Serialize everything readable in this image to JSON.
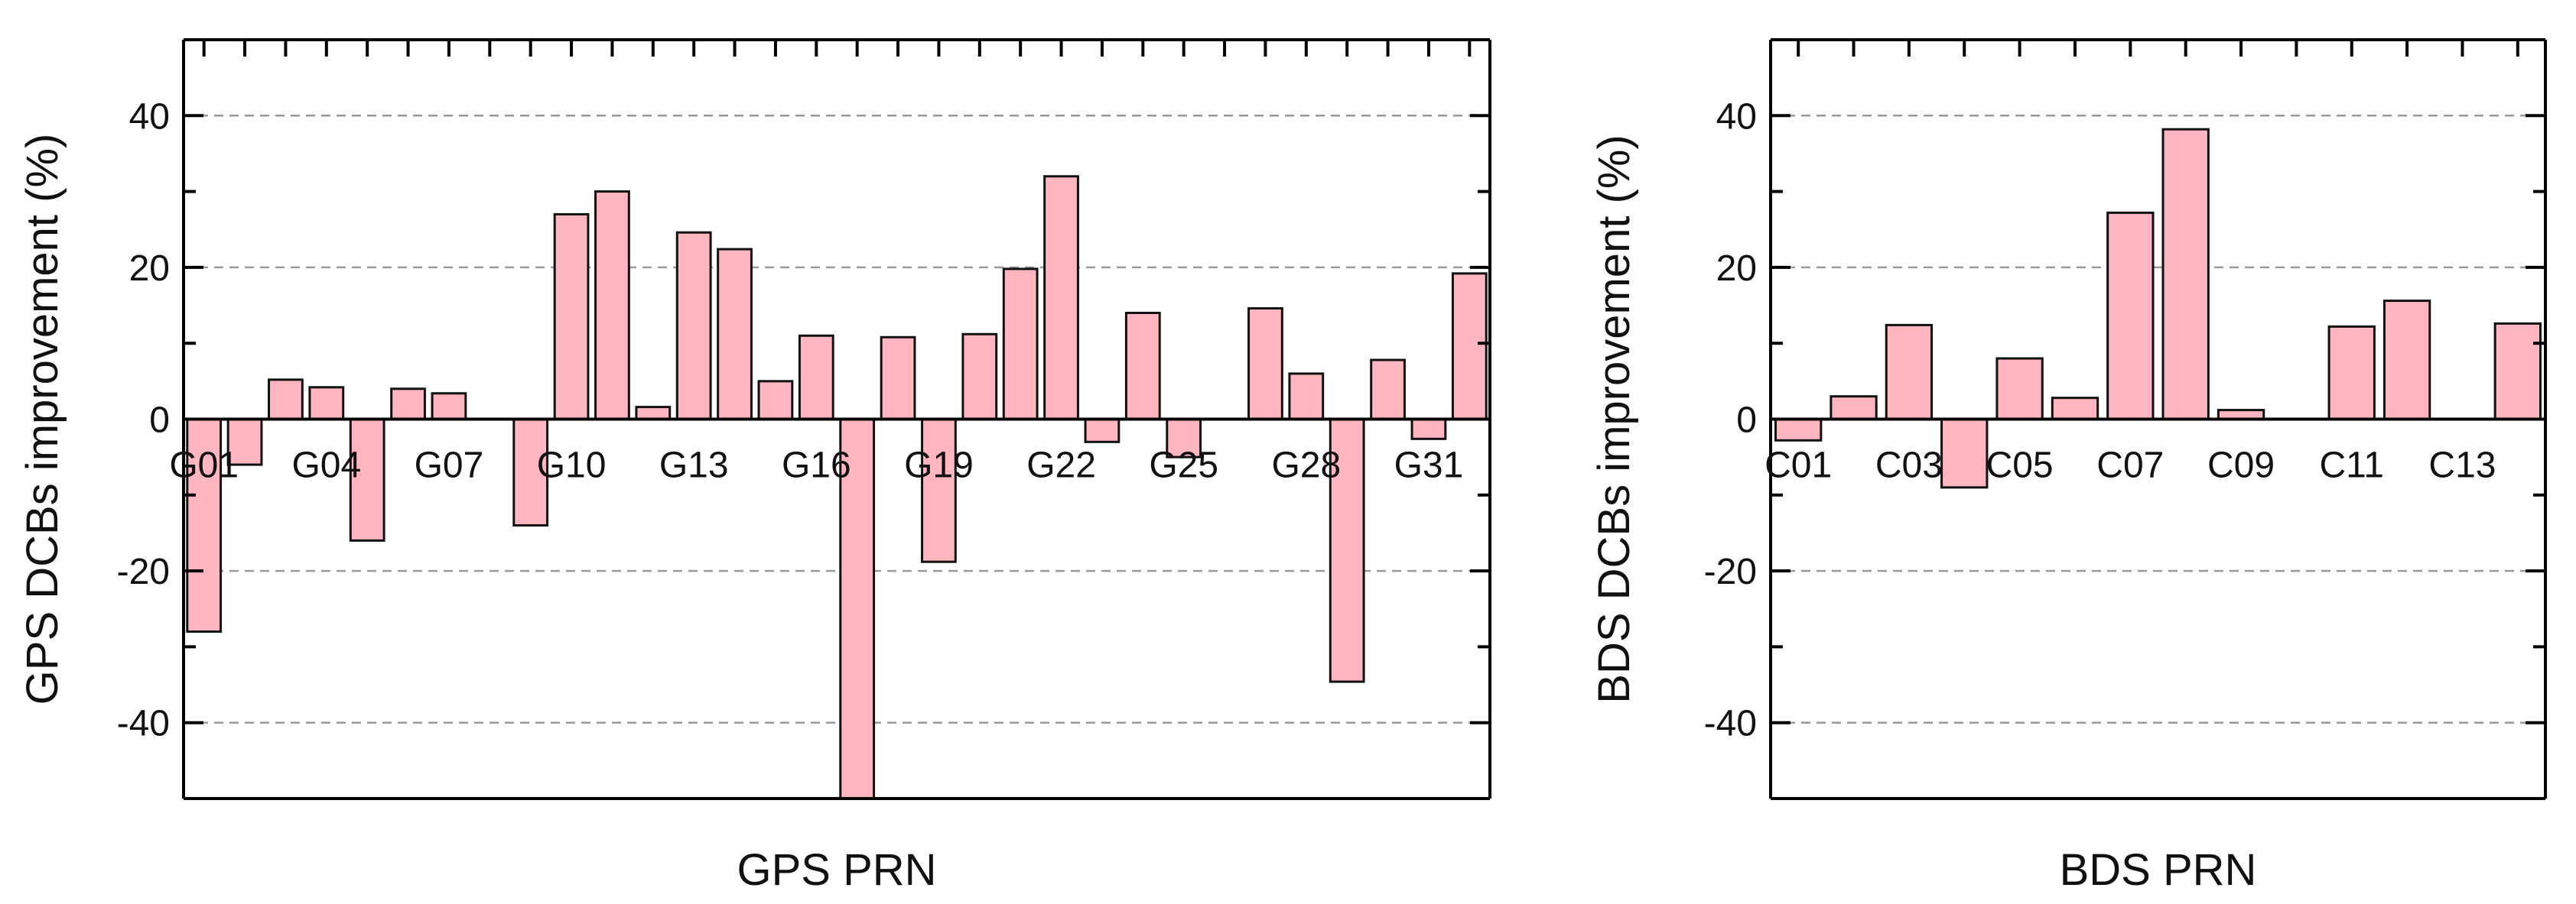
{
  "chart_data": [
    {
      "type": "bar",
      "xlabel": "GPS PRN",
      "ylabel": "GPS DCBs improvement (%)",
      "ylim": [
        -50,
        50
      ],
      "yticks": [
        -40,
        -20,
        0,
        20,
        40
      ],
      "ytick_labels": [
        "-40",
        "-20",
        "0",
        "20",
        "40"
      ],
      "grid": "horizontal dashed at major y ticks",
      "legend": "none",
      "bar_color": "#ffb6c1",
      "categories": [
        "G01",
        "G02",
        "G03",
        "G04",
        "G05",
        "G06",
        "G07",
        "G08",
        "G09",
        "G10",
        "G11",
        "G12",
        "G13",
        "G14",
        "G15",
        "G16",
        "G17",
        "G18",
        "G19",
        "G20",
        "G21",
        "G22",
        "G23",
        "G24",
        "G25",
        "G26",
        "G27",
        "G28",
        "G29",
        "G30",
        "G31",
        "G32"
      ],
      "values": [
        -28,
        -6,
        5.2,
        4.2,
        -16,
        4,
        3.4,
        0,
        -14,
        27,
        30,
        1.6,
        24.6,
        22.4,
        5,
        11,
        -50,
        10.8,
        -18.8,
        11.2,
        19.8,
        32,
        -3,
        14,
        -5,
        0,
        14.6,
        6,
        -34.6,
        7.8,
        -2.6,
        19.2
      ],
      "xtick_labels": [
        "G01",
        "G04",
        "G07",
        "G10",
        "G13",
        "G16",
        "G19",
        "G22",
        "G25",
        "G28",
        "G31"
      ]
    },
    {
      "type": "bar",
      "xlabel": "BDS PRN",
      "ylabel": "BDS DCBs improvement (%)",
      "ylim": [
        -50,
        50
      ],
      "yticks": [
        -40,
        -20,
        0,
        20,
        40
      ],
      "ytick_labels": [
        "-40",
        "-20",
        "0",
        "20",
        "40"
      ],
      "grid": "horizontal dashed at major y ticks",
      "legend": "none",
      "bar_color": "#ffb6c1",
      "categories": [
        "C01",
        "C02",
        "C03",
        "C04",
        "C05",
        "C06",
        "C07",
        "C08",
        "C09",
        "C10",
        "C11",
        "C12",
        "C13",
        "C14"
      ],
      "values": [
        -2.8,
        3,
        12.4,
        -9,
        8,
        2.8,
        27.2,
        38.2,
        1.2,
        0,
        12.2,
        15.6,
        0,
        12.6
      ],
      "xtick_labels": [
        "C01",
        "C03",
        "C05",
        "C07",
        "C09",
        "C11",
        "C13"
      ]
    }
  ]
}
